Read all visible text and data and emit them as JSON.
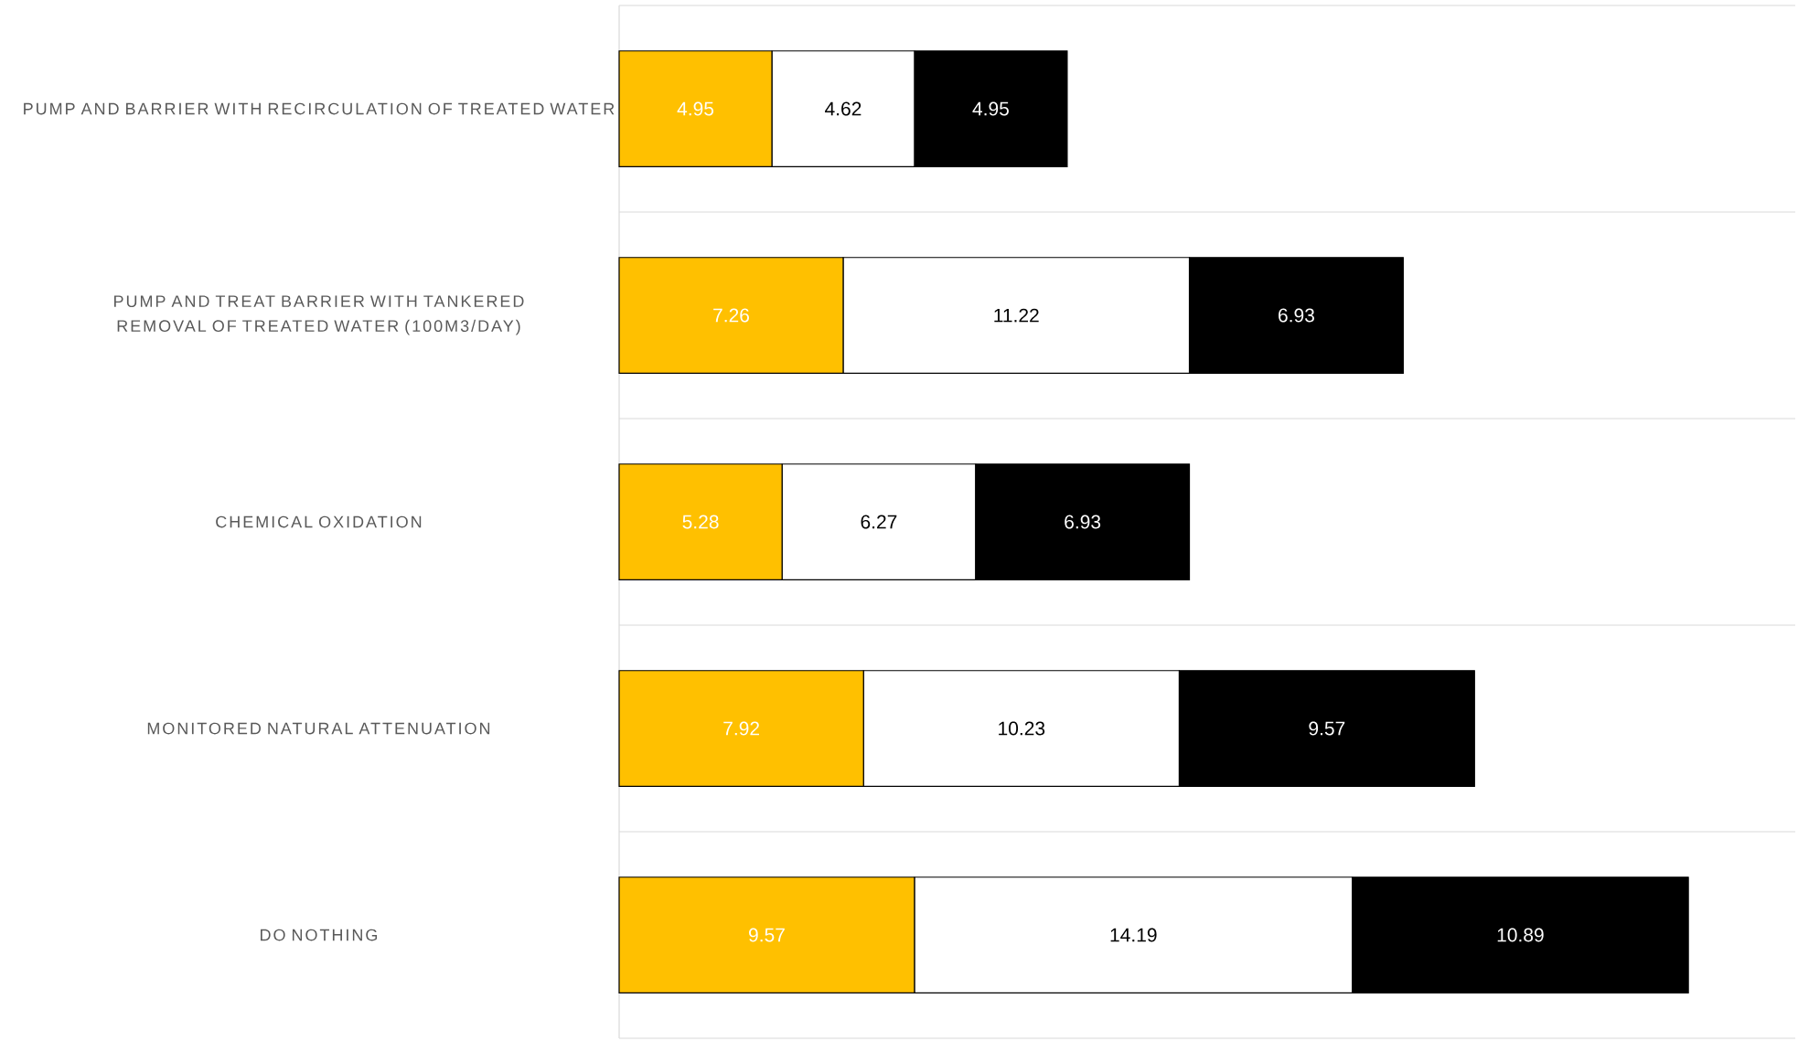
{
  "chart_data": {
    "type": "bar",
    "orientation": "horizontal",
    "stacked": true,
    "data_labels": true,
    "grid": "y",
    "categories": [
      "PUMP AND BARRIER WITH RECIRCULATION OF TREATED WATER",
      "PUMP AND TREAT BARRIER WITH TANKERED REMOVAL OF TREATED WATER (100M3/DAY)",
      "CHEMICAL OXIDATION",
      "MONITORED NATURAL ATTENUATION",
      "DO NOTHING"
    ],
    "series": [
      {
        "color": "#ffc000",
        "values": [
          4.95,
          7.26,
          5.28,
          7.92,
          9.57
        ]
      },
      {
        "color": "#ffffff",
        "values": [
          4.62,
          11.22,
          6.27,
          10.23,
          14.19
        ]
      },
      {
        "color": "#000000",
        "values": [
          4.95,
          6.93,
          6.93,
          9.57,
          10.89
        ]
      }
    ]
  }
}
